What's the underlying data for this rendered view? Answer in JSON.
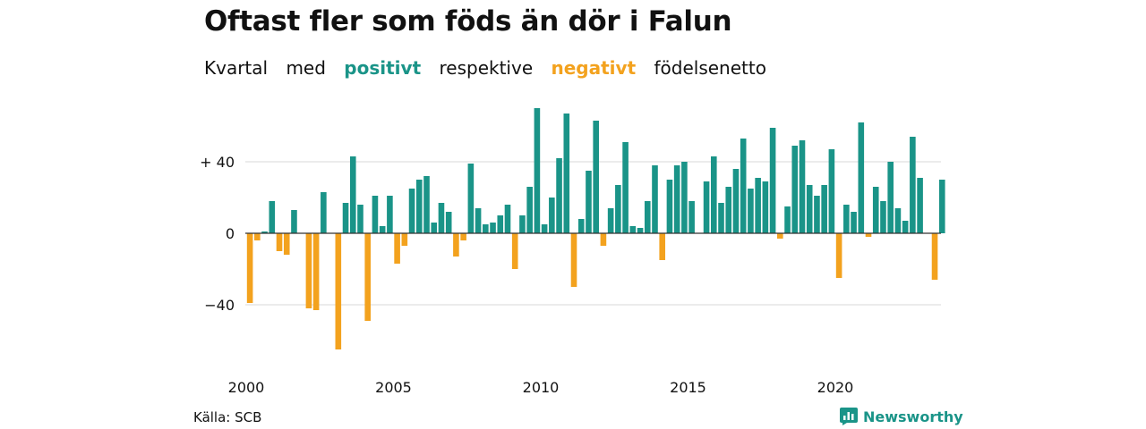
{
  "title": "Oftast fler som föds än dör i Falun",
  "subtitle": {
    "part1": "Kvartal",
    "part2": "med",
    "positive_word": "positivt",
    "part3": "respektive",
    "negative_word": "negativt",
    "part4": "födelsenetto"
  },
  "source": "Källa: SCB",
  "logo_text": "Newsworthy",
  "colors": {
    "positive": "#1a9488",
    "negative": "#f3a21e",
    "text": "#111111",
    "grid": "#d9d9d9"
  },
  "chart_data": {
    "type": "bar",
    "title": "Oftast fler som föds än dör i Falun",
    "ylim": [
      -70,
      70
    ],
    "yticks": [
      {
        "value": 40,
        "label": "+ 40"
      },
      {
        "value": 0,
        "label": "0"
      },
      {
        "value": -40,
        "label": "−40"
      }
    ],
    "xticks": [
      {
        "value": 2000,
        "label": "2000"
      },
      {
        "value": 2005,
        "label": "2005"
      },
      {
        "value": 2010,
        "label": "2010"
      },
      {
        "value": 2015,
        "label": "2015"
      },
      {
        "value": 2020,
        "label": "2020"
      }
    ],
    "x_start_year": 2000,
    "grid": true,
    "categories": [
      "2000 Q1",
      "2000 Q2",
      "2000 Q3",
      "2000 Q4",
      "2001 Q1",
      "2001 Q2",
      "2001 Q3",
      "2001 Q4",
      "2002 Q1",
      "2002 Q2",
      "2002 Q3",
      "2002 Q4",
      "2003 Q1",
      "2003 Q2",
      "2003 Q3",
      "2003 Q4",
      "2004 Q1",
      "2004 Q2",
      "2004 Q3",
      "2004 Q4",
      "2005 Q1",
      "2005 Q2",
      "2005 Q3",
      "2005 Q4",
      "2006 Q1",
      "2006 Q2",
      "2006 Q3",
      "2006 Q4",
      "2007 Q1",
      "2007 Q2",
      "2007 Q3",
      "2007 Q4",
      "2008 Q1",
      "2008 Q2",
      "2008 Q3",
      "2008 Q4",
      "2009 Q1",
      "2009 Q2",
      "2009 Q3",
      "2009 Q4",
      "2010 Q1",
      "2010 Q2",
      "2010 Q3",
      "2010 Q4",
      "2011 Q1",
      "2011 Q2",
      "2011 Q3",
      "2011 Q4",
      "2012 Q1",
      "2012 Q2",
      "2012 Q3",
      "2012 Q4",
      "2013 Q1",
      "2013 Q2",
      "2013 Q3",
      "2013 Q4",
      "2014 Q1",
      "2014 Q2",
      "2014 Q3",
      "2014 Q4",
      "2015 Q1",
      "2015 Q2",
      "2015 Q3",
      "2015 Q4",
      "2016 Q1",
      "2016 Q2",
      "2016 Q3",
      "2016 Q4",
      "2017 Q1",
      "2017 Q2",
      "2017 Q3",
      "2017 Q4",
      "2018 Q1",
      "2018 Q2",
      "2018 Q3",
      "2018 Q4",
      "2019 Q1",
      "2019 Q2",
      "2019 Q3",
      "2019 Q4",
      "2020 Q1",
      "2020 Q2",
      "2020 Q3",
      "2020 Q4",
      "2021 Q1",
      "2021 Q2",
      "2021 Q3",
      "2021 Q4",
      "2022 Q1",
      "2022 Q2",
      "2022 Q3",
      "2022 Q4",
      "2023 Q1",
      "2023 Q2",
      "2023 Q3",
      "2023 Q4"
    ],
    "values": [
      -39,
      -4,
      1,
      18,
      -10,
      -12,
      13,
      0,
      -42,
      -43,
      23,
      0,
      -65,
      17,
      43,
      16,
      -49,
      21,
      4,
      21,
      -17,
      -7,
      25,
      30,
      32,
      6,
      17,
      12,
      -13,
      -4,
      39,
      14,
      5,
      6,
      10,
      16,
      -20,
      10,
      26,
      70,
      5,
      20,
      42,
      67,
      -30,
      8,
      35,
      63,
      -7,
      14,
      27,
      51,
      4,
      3,
      18,
      38,
      -15,
      30,
      38,
      40,
      18,
      0,
      29,
      43,
      17,
      26,
      36,
      53,
      25,
      31,
      29,
      59,
      -3,
      15,
      49,
      52,
      27,
      21,
      27,
      47,
      -25,
      16,
      12,
      62,
      -2,
      26,
      18,
      40,
      14,
      7,
      54,
      31,
      0,
      -26,
      30,
      0
    ]
  }
}
